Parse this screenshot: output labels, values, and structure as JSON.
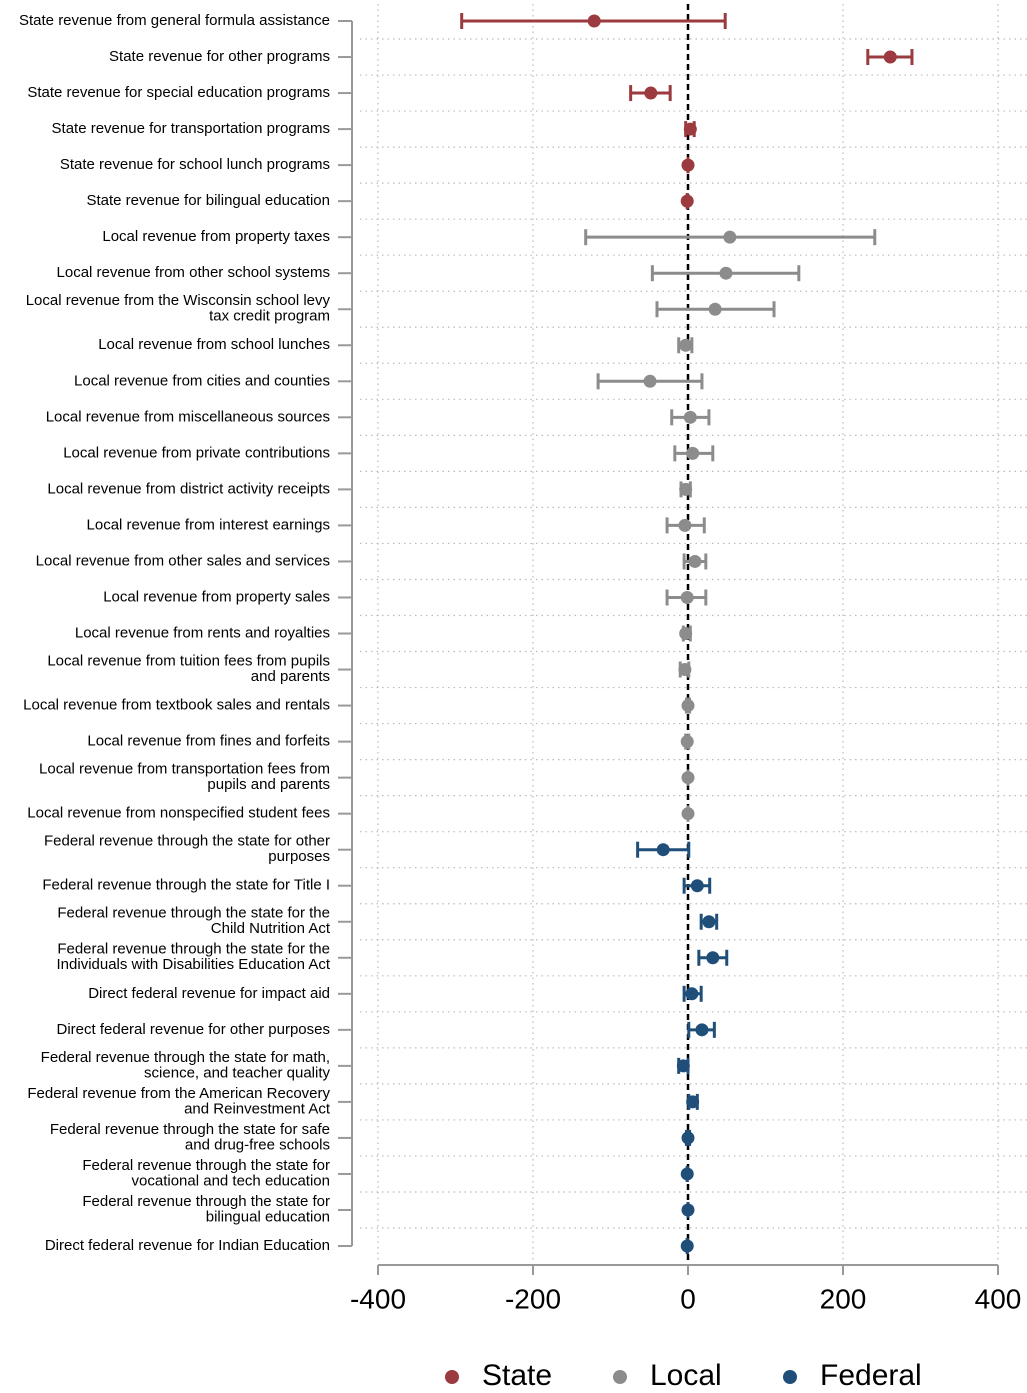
{
  "chart_data": {
    "type": "coefplot",
    "categories": [
      "State revenue from general formula assistance",
      "State revenue for other programs",
      "State revenue for special education programs",
      "State revenue for transportation programs",
      "State revenue for school lunch programs",
      "State revenue for bilingual education",
      "Local revenue from property taxes",
      "Local revenue from other school systems",
      [
        "Local revenue from the Wisconsin school levy",
        "tax credit program"
      ],
      "Local revenue from school lunches",
      "Local revenue from cities and counties",
      "Local revenue from miscellaneous sources",
      "Local revenue from private contributions",
      "Local revenue from district activity receipts",
      "Local revenue from interest earnings",
      "Local revenue from other sales and services",
      "Local revenue from property sales",
      "Local revenue from rents and royalties",
      [
        "Local revenue from tuition fees from pupils",
        "and parents"
      ],
      "Local revenue from textbook sales and rentals",
      "Local revenue from fines and forfeits",
      [
        "Local revenue from transportation fees from",
        "pupils and parents"
      ],
      "Local revenue from nonspecified student fees",
      [
        "Federal revenue through the state for other",
        "purposes"
      ],
      "Federal revenue through the state for Title I",
      [
        "Federal revenue through the state for the",
        "Child Nutrition Act"
      ],
      [
        "Federal revenue through the state for the",
        "Individuals with Disabilities Education Act"
      ],
      "Direct federal revenue for impact aid",
      "Direct federal revenue for other purposes",
      [
        "Federal revenue through the state for math,",
        "science, and teacher quality"
      ],
      [
        "Federal revenue from the American Recovery",
        "and Reinvestment Act"
      ],
      [
        "Federal revenue through the state for safe",
        "and drug-free schools"
      ],
      [
        "Federal revenue through the state for",
        "vocational and tech education"
      ],
      [
        "Federal revenue through the state for",
        "bilingual education"
      ],
      "Direct federal revenue for Indian Education"
    ],
    "series": [
      {
        "name": "State",
        "color": "#9b3a3f",
        "values": [
          -121,
          261,
          -48,
          3,
          0,
          -1,
          null,
          null,
          null,
          null,
          null,
          null,
          null,
          null,
          null,
          null,
          null,
          null,
          null,
          null,
          null,
          null,
          null,
          null,
          null,
          null,
          null,
          null,
          null,
          null,
          null,
          null,
          null,
          null,
          null
        ],
        "ci_low": [
          -292,
          232,
          -74,
          -3,
          0,
          -1,
          null,
          null,
          null,
          null,
          null,
          null,
          null,
          null,
          null,
          null,
          null,
          null,
          null,
          null,
          null,
          null,
          null,
          null,
          null,
          null,
          null,
          null,
          null,
          null,
          null,
          null,
          null,
          null,
          null
        ],
        "ci_high": [
          48,
          289,
          -23,
          8,
          0,
          -1,
          null,
          null,
          null,
          null,
          null,
          null,
          null,
          null,
          null,
          null,
          null,
          null,
          null,
          null,
          null,
          null,
          null,
          null,
          null,
          null,
          null,
          null,
          null,
          null,
          null,
          null,
          null,
          null,
          null
        ]
      },
      {
        "name": "Local",
        "color": "#8c8c8c",
        "values": [
          null,
          null,
          null,
          null,
          null,
          null,
          54,
          49,
          35,
          -3,
          -49,
          3,
          6,
          -3,
          -4,
          9,
          -1,
          -3,
          -4,
          0,
          -1,
          0,
          0,
          null,
          null,
          null,
          null,
          null,
          null,
          null,
          null,
          null,
          null,
          null,
          null
        ],
        "ci_low": [
          null,
          null,
          null,
          null,
          null,
          null,
          -132,
          -46,
          -40,
          -12,
          -116,
          -21,
          -17,
          -9,
          -27,
          -5,
          -27,
          -6,
          -10,
          -2,
          -3,
          0,
          0,
          null,
          null,
          null,
          null,
          null,
          null,
          null,
          null,
          null,
          null,
          null,
          null
        ],
        "ci_high": [
          null,
          null,
          null,
          null,
          null,
          null,
          241,
          143,
          111,
          5,
          18,
          27,
          32,
          3,
          21,
          23,
          23,
          3,
          1,
          2,
          1,
          0,
          0,
          null,
          null,
          null,
          null,
          null,
          null,
          null,
          null,
          null,
          null,
          null,
          null
        ]
      },
      {
        "name": "Federal",
        "color": "#1f4e79",
        "values": [
          null,
          null,
          null,
          null,
          null,
          null,
          null,
          null,
          null,
          null,
          null,
          null,
          null,
          null,
          null,
          null,
          null,
          null,
          null,
          null,
          null,
          null,
          null,
          -32,
          12,
          27,
          32,
          5,
          18,
          -6,
          6,
          0,
          -1,
          0,
          -1
        ],
        "ci_low": [
          null,
          null,
          null,
          null,
          null,
          null,
          null,
          null,
          null,
          null,
          null,
          null,
          null,
          null,
          null,
          null,
          null,
          null,
          null,
          null,
          null,
          null,
          null,
          -65,
          -5,
          17,
          14,
          -5,
          1,
          -12,
          1,
          -2,
          -1,
          0,
          -1
        ],
        "ci_high": [
          null,
          null,
          null,
          null,
          null,
          null,
          null,
          null,
          null,
          null,
          null,
          null,
          null,
          null,
          null,
          null,
          null,
          null,
          null,
          null,
          null,
          null,
          null,
          1,
          28,
          37,
          50,
          17,
          34,
          0,
          12,
          2,
          -1,
          0,
          -1
        ]
      }
    ],
    "xlim": [
      -400,
      400
    ],
    "xticks": [
      -400,
      -200,
      0,
      200,
      400
    ],
    "grid": true,
    "legend": "bottom"
  }
}
